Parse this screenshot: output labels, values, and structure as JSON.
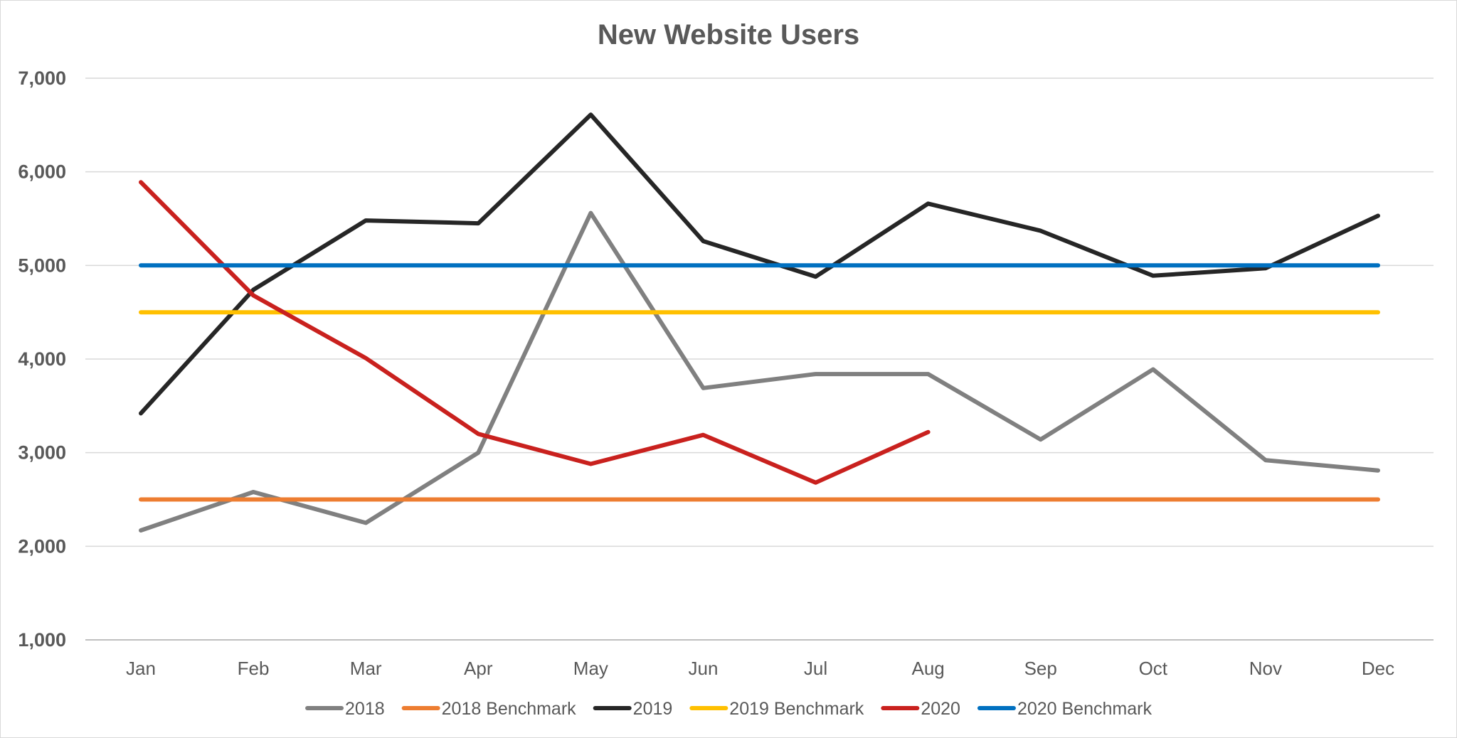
{
  "chart_data": {
    "type": "line",
    "title": "New Website Users",
    "xlabel": "",
    "ylabel": "",
    "categories": [
      "Jan",
      "Feb",
      "Mar",
      "Apr",
      "May",
      "Jun",
      "Jul",
      "Aug",
      "Sep",
      "Oct",
      "Nov",
      "Dec"
    ],
    "ylim": [
      1000,
      7000
    ],
    "yticks": [
      1000,
      2000,
      3000,
      4000,
      5000,
      6000,
      7000
    ],
    "ytick_labels": [
      "1,000",
      "2,000",
      "3,000",
      "4,000",
      "5,000",
      "6,000",
      "7,000"
    ],
    "grid": true,
    "legend_position": "bottom",
    "series": [
      {
        "name": "2018",
        "color": "#808080",
        "values": [
          2170,
          2580,
          2250,
          3000,
          5560,
          3690,
          3840,
          3840,
          3140,
          3890,
          2920,
          2810
        ]
      },
      {
        "name": "2018 Benchmark",
        "color": "#ED7D31",
        "values": [
          2500,
          2500,
          2500,
          2500,
          2500,
          2500,
          2500,
          2500,
          2500,
          2500,
          2500,
          2500
        ]
      },
      {
        "name": "2019",
        "color": "#262626",
        "values": [
          3420,
          4740,
          5480,
          5450,
          6610,
          5260,
          4880,
          5660,
          5370,
          4890,
          4970,
          5530
        ]
      },
      {
        "name": "2019 Benchmark",
        "color": "#FFC000",
        "values": [
          4500,
          4500,
          4500,
          4500,
          4500,
          4500,
          4500,
          4500,
          4500,
          4500,
          4500,
          4500
        ]
      },
      {
        "name": "2020",
        "color": "#C9211E",
        "values": [
          5890,
          4680,
          4010,
          3200,
          2880,
          3190,
          2680,
          3220,
          null,
          null,
          null,
          null
        ]
      },
      {
        "name": "2020 Benchmark",
        "color": "#0070C0",
        "values": [
          5000,
          5000,
          5000,
          5000,
          5000,
          5000,
          5000,
          5000,
          5000,
          5000,
          5000,
          5000
        ]
      }
    ]
  }
}
